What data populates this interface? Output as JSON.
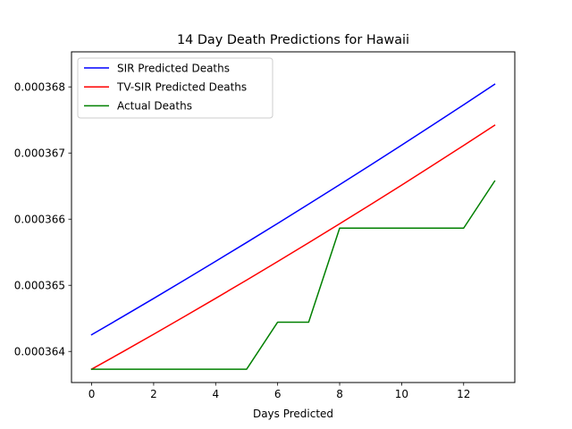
{
  "chart_data": {
    "type": "line",
    "title": "14 Day Death Predictions for Hawaii",
    "xlabel": "Days Predicted",
    "ylabel": "",
    "xlim": [
      -0.65,
      13.65
    ],
    "ylim": [
      0.00036353,
      0.00036853
    ],
    "x_ticks": [
      0,
      2,
      4,
      6,
      8,
      10,
      12
    ],
    "y_ticks": [
      0.000364,
      0.000365,
      0.000366,
      0.000367,
      0.000368
    ],
    "x_tick_labels": [
      "0",
      "2",
      "4",
      "6",
      "8",
      "10",
      "12"
    ],
    "y_tick_labels": [
      "0.000364",
      "0.000365",
      "0.000366",
      "0.000367",
      "0.000368"
    ],
    "grid": false,
    "legend_position": "top-left",
    "x": [
      0,
      1,
      2,
      3,
      4,
      5,
      6,
      7,
      8,
      9,
      10,
      11,
      12,
      13
    ],
    "series": [
      {
        "name": "SIR Predicted Deaths",
        "color": "#0000ff",
        "values": [
          0.0003642526,
          0.0003645255,
          0.0003648014,
          0.0003650804,
          0.0003653625,
          0.0003656476,
          0.0003659357,
          0.000366227,
          0.0003665214,
          0.0003668188,
          0.0003671193,
          0.000367423,
          0.0003677297,
          0.0003680395
        ]
      },
      {
        "name": "TV-SIR Predicted Deaths",
        "color": "#ff0000",
        "values": [
          0.0003637316,
          0.0003639941,
          0.0003642602,
          0.0003645297,
          0.0003648028,
          0.0003650794,
          0.0003653596,
          0.0003656433,
          0.0003659305,
          0.0003662212,
          0.0003665154,
          0.0003668132,
          0.0003671145,
          0.0003674193
        ]
      },
      {
        "name": "Actual Deaths",
        "color": "#008000",
        "values": [
          0.0003637316,
          0.0003637316,
          0.0003637316,
          0.0003637316,
          0.0003637316,
          0.0003637316,
          0.0003644426,
          0.0003644426,
          0.0003658647,
          0.0003658647,
          0.0003658647,
          0.0003658647,
          0.0003658647,
          0.0003665757
        ]
      }
    ]
  }
}
